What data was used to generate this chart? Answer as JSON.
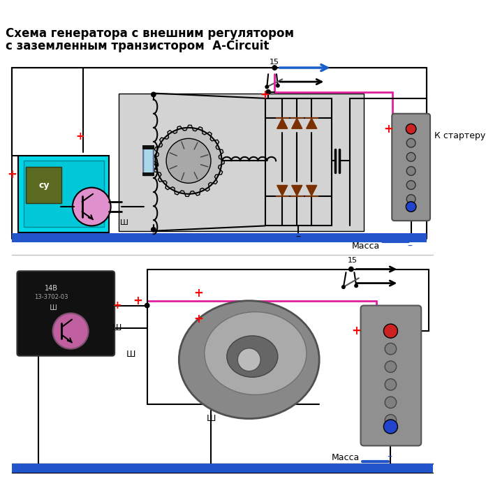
{
  "title_line1": "Схема генератора с внешним регулятором",
  "title_line2": "с заземленным транзистором  A-Circuit",
  "title_fontsize": 12,
  "bg_color": "#ffffff",
  "blue_bar_color": "#2255cc",
  "pink_line_color": "#e020a0",
  "label_massa": "Масса",
  "label_k_starter": "К стартеру",
  "label_15": "15",
  "label_sh": "Ш",
  "label_cy": "су"
}
